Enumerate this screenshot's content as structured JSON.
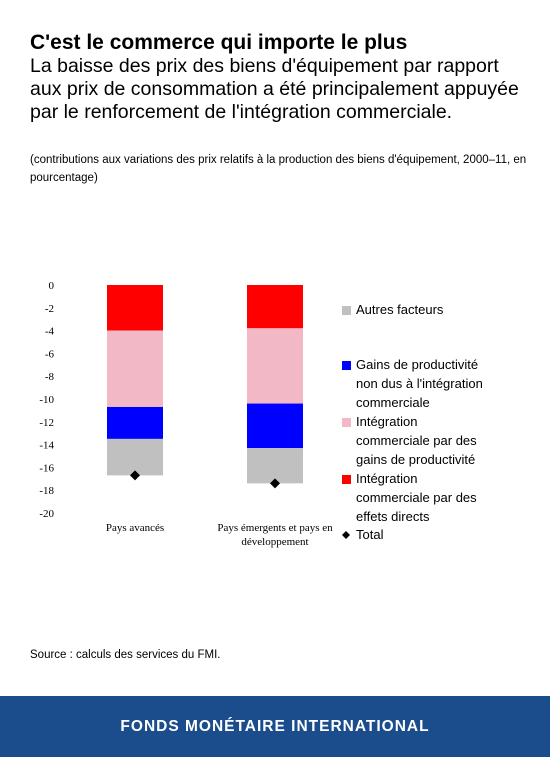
{
  "header": {
    "title": "C'est le commerce qui importe le plus",
    "subtitle": "La baisse des prix des biens d'équipement par rapport aux prix de consommation a été principalement appuyée par le renforcement de l'intégration commerciale.",
    "note": "(contributions aux variations des prix relatifs à la production des biens d'équipement, 2000–11, en pourcentage)"
  },
  "source": "Source : calculs des services du FMI.",
  "footer": {
    "label": "FONDS MONÉTAIRE INTERNATIONAL"
  },
  "chart_data": {
    "type": "bar",
    "stacked": true,
    "categories": [
      "Pays avancés",
      "Pays émergents et pays en développement"
    ],
    "ylim": [
      -20,
      0
    ],
    "yticks": [
      0,
      -2,
      -4,
      -6,
      -8,
      -10,
      -12,
      -14,
      -16,
      -18,
      -20
    ],
    "series": [
      {
        "name": "Intégration commerciale par des effets directs",
        "color": "#ff0000",
        "values": [
          -4.0,
          -3.8
        ]
      },
      {
        "name": "Intégration commerciale par des gains de productivité",
        "color": "#f2b8c6",
        "values": [
          -6.7,
          -6.6
        ]
      },
      {
        "name": "Gains de productivité non dus à l'intégration commerciale",
        "color": "#0000ff",
        "values": [
          -2.8,
          -3.9
        ]
      },
      {
        "name": "Autres facteurs",
        "color": "#c0c0c0",
        "values": [
          -3.2,
          -3.1
        ]
      }
    ],
    "total": {
      "name": "Total",
      "values": [
        -16.7,
        -17.4
      ]
    },
    "legend": [
      {
        "name": "Autres facteurs",
        "color": "#c0c0c0",
        "marker": "square"
      },
      {
        "name": "Gains de productivité non dus à l'intégration commerciale",
        "color": "#0000ff",
        "marker": "square"
      },
      {
        "name": "Intégration commerciale par des gains de productivité",
        "color": "#f2b8c6",
        "marker": "square"
      },
      {
        "name": "Intégration commerciale par des effets directs",
        "color": "#ff0000",
        "marker": "square"
      },
      {
        "name": "Total",
        "color": "#000000",
        "marker": "diamond"
      }
    ],
    "legend_position": "right",
    "grid": false
  }
}
